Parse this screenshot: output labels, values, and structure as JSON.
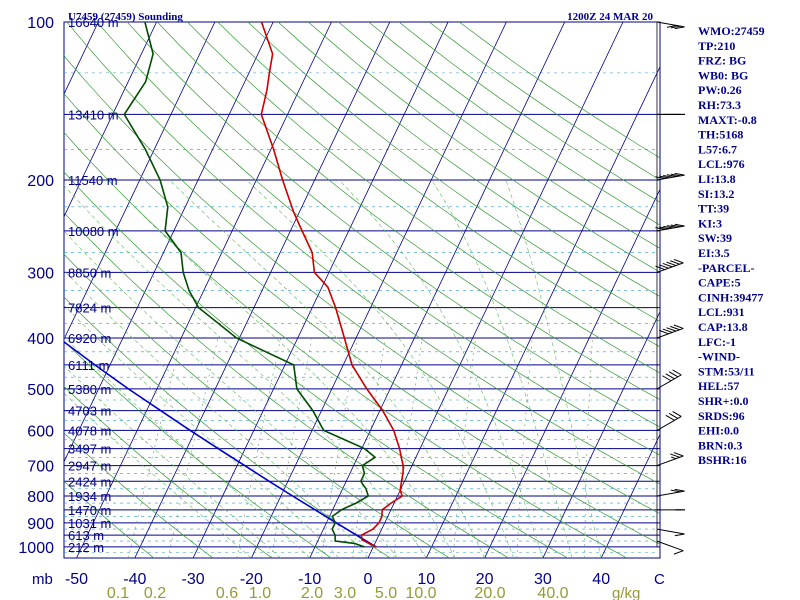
{
  "header": {
    "station_title": "U7459 (27459) Sounding",
    "valid_time": "1200Z 24 MAR 20"
  },
  "chart_data": {
    "type": "skew-t",
    "pressure_ticks": [
      100,
      200,
      300,
      400,
      500,
      600,
      700,
      800,
      900,
      1000
    ],
    "temperature_ticks": [
      -50,
      -40,
      -30,
      -20,
      -10,
      0,
      10,
      20,
      30,
      40
    ],
    "temperature_axis_extra_label": "C",
    "pressure_axis_unit": "mb",
    "mixing_ratio_ticks": [
      "0.1",
      "0.2",
      "0.6",
      "1.0",
      "2.0",
      "3.0",
      "5.0",
      "10.0",
      "20.0",
      "40.0"
    ],
    "mixing_ratio_unit": "g/kg",
    "height_labels": [
      {
        "p": 100,
        "h": "16640 m"
      },
      {
        "p": 150,
        "h": "13410 m"
      },
      {
        "p": 200,
        "h": "11540 m"
      },
      {
        "p": 250,
        "h": "10080 m"
      },
      {
        "p": 300,
        "h": "8850 m"
      },
      {
        "p": 350,
        "h": "7824 m"
      },
      {
        "p": 400,
        "h": "6920 m"
      },
      {
        "p": 450,
        "h": "6111 m"
      },
      {
        "p": 500,
        "h": "5380 m"
      },
      {
        "p": 550,
        "h": "4703 m"
      },
      {
        "p": 600,
        "h": "4078 m"
      },
      {
        "p": 650,
        "h": "3497 m"
      },
      {
        "p": 700,
        "h": "2947 m"
      },
      {
        "p": 750,
        "h": "2424 m"
      },
      {
        "p": 800,
        "h": "1934 m"
      },
      {
        "p": 850,
        "h": "1470 m"
      },
      {
        "p": 900,
        "h": "1031 m"
      },
      {
        "p": 950,
        "h": "613 m"
      },
      {
        "p": 1000,
        "h": "212 m"
      }
    ],
    "temperature_profile": [
      [
        1000,
        0.5
      ],
      [
        985,
        -1.0
      ],
      [
        970,
        -2.5
      ],
      [
        950,
        -3.0
      ],
      [
        925,
        -1.5
      ],
      [
        900,
        -1.0
      ],
      [
        875,
        -1.0
      ],
      [
        850,
        -1.5
      ],
      [
        825,
        -0.5
      ],
      [
        800,
        0.8
      ],
      [
        780,
        0.0
      ],
      [
        750,
        -0.5
      ],
      [
        720,
        -1.0
      ],
      [
        700,
        -1.5
      ],
      [
        675,
        -2.5
      ],
      [
        650,
        -3.5
      ],
      [
        600,
        -6.0
      ],
      [
        550,
        -9.5
      ],
      [
        500,
        -14.0
      ],
      [
        450,
        -18.5
      ],
      [
        400,
        -22.0
      ],
      [
        350,
        -26.0
      ],
      [
        320,
        -29.0
      ],
      [
        300,
        -32.5
      ],
      [
        275,
        -34.5
      ],
      [
        250,
        -38.0
      ],
      [
        230,
        -41.0
      ],
      [
        200,
        -45.5
      ],
      [
        175,
        -49.5
      ],
      [
        150,
        -54.5
      ],
      [
        135,
        -55.5
      ],
      [
        125,
        -56.5
      ],
      [
        115,
        -57.5
      ],
      [
        100,
        -62.0
      ]
    ],
    "dewpoint_profile": [
      [
        1000,
        -1.5
      ],
      [
        985,
        -3.5
      ],
      [
        975,
        -7.0
      ],
      [
        950,
        -7.5
      ],
      [
        925,
        -8.5
      ],
      [
        900,
        -8.5
      ],
      [
        875,
        -9.5
      ],
      [
        850,
        -8.5
      ],
      [
        825,
        -6.5
      ],
      [
        800,
        -5.0
      ],
      [
        775,
        -6.0
      ],
      [
        750,
        -7.5
      ],
      [
        725,
        -7.5
      ],
      [
        700,
        -8.5
      ],
      [
        675,
        -7.0
      ],
      [
        650,
        -9.5
      ],
      [
        600,
        -18.0
      ],
      [
        550,
        -21.5
      ],
      [
        500,
        -26.0
      ],
      [
        450,
        -28.5
      ],
      [
        400,
        -40.5
      ],
      [
        350,
        -49.5
      ],
      [
        325,
        -52.5
      ],
      [
        300,
        -55.0
      ],
      [
        275,
        -57.0
      ],
      [
        250,
        -61.5
      ],
      [
        225,
        -63.0
      ],
      [
        200,
        -66.5
      ],
      [
        175,
        -71.5
      ],
      [
        150,
        -78.0
      ],
      [
        130,
        -77.0
      ],
      [
        115,
        -78.0
      ],
      [
        100,
        -82.0
      ]
    ],
    "parcel_trace": [
      [
        1000,
        0.5
      ],
      [
        950,
        -3.8
      ],
      [
        900,
        -8.3
      ],
      [
        850,
        -13.0
      ],
      [
        800,
        -18.0
      ],
      [
        750,
        -23.2
      ],
      [
        700,
        -28.7
      ],
      [
        650,
        -34.6
      ],
      [
        600,
        -40.9
      ],
      [
        550,
        -47.6
      ],
      [
        500,
        -54.9
      ],
      [
        450,
        -62.6
      ],
      [
        400,
        -71.0
      ],
      [
        350,
        -80.0
      ],
      [
        300,
        -90.0
      ],
      [
        250,
        -100.5
      ],
      [
        200,
        -113.0
      ],
      [
        150,
        -128.0
      ],
      [
        125,
        -137.0
      ],
      [
        110,
        -143.0
      ]
    ],
    "wind_barbs": [
      {
        "p": 975,
        "dir": 250,
        "kt": 10
      },
      {
        "p": 925,
        "dir": 260,
        "kt": 10
      },
      {
        "p": 850,
        "dir": 270,
        "kt": 15
      },
      {
        "p": 800,
        "dir": 280,
        "kt": 20
      },
      {
        "p": 700,
        "dir": 290,
        "kt": 25
      },
      {
        "p": 600,
        "dir": 300,
        "kt": 30
      },
      {
        "p": 500,
        "dir": 300,
        "kt": 40
      },
      {
        "p": 400,
        "dir": 290,
        "kt": 50
      },
      {
        "p": 300,
        "dir": 290,
        "kt": 60
      },
      {
        "p": 250,
        "dir": 280,
        "kt": 70
      },
      {
        "p": 200,
        "dir": 280,
        "kt": 60
      },
      {
        "p": 150,
        "dir": 270,
        "kt": 50
      },
      {
        "p": 100,
        "dir": 260,
        "kt": 30
      }
    ],
    "colors": {
      "isobar": "#00008b",
      "isotherm": "#00008b",
      "dry_adiabat": "#339933",
      "moist_adiabat": "#5cb85c",
      "mixing_ratio": "#669966",
      "mixing_ratio_label": "#999933",
      "parcel": "#0000cc",
      "temperature": "#cc0000",
      "dewpoint": "#004d00",
      "extra_isobars": "#3399cc"
    }
  },
  "indices": [
    "WMO:27459",
    "TP:210",
    "FRZ: BG",
    "WB0: BG",
    "PW:0.26",
    "RH:73.3",
    "MAXT:-0.8",
    "TH:5168",
    "L57:6.7",
    "LCL:976",
    "LI:13.8",
    "SI:13.2",
    "TT:39",
    "KI:3",
    "SW:39",
    "EI:3.5",
    "-PARCEL-",
    "CAPE:5",
    "CINH:39477",
    "LCL:931",
    "CAP:13.8",
    "LFC:-1",
    "-WIND-",
    "STM:53/11",
    "HEL:57",
    "SHR+:0.0",
    "SRDS:96",
    "EHI:0.0",
    "BRN:0.3",
    "BSHR:16"
  ]
}
